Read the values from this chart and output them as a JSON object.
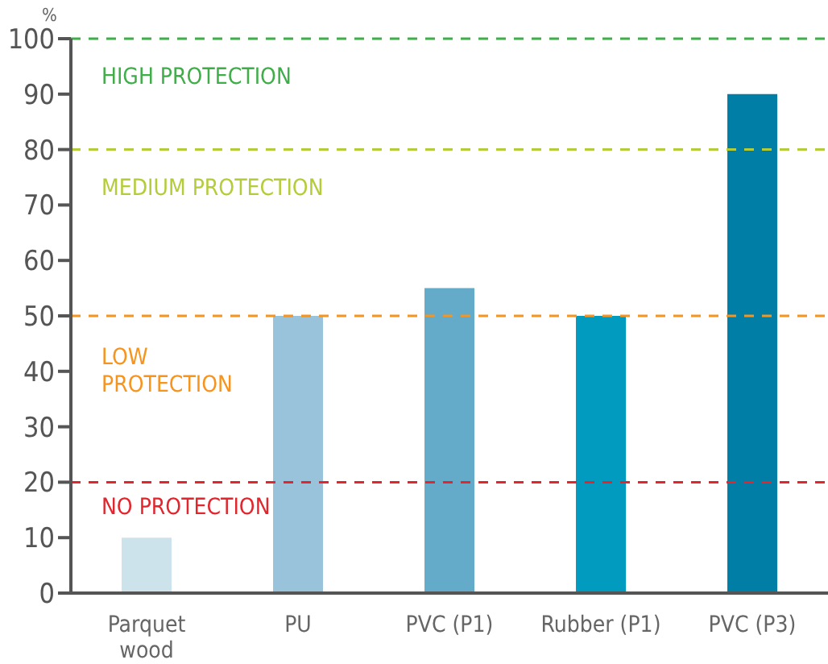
{
  "chart_data": {
    "type": "bar",
    "ylabel": "%",
    "categories": [
      "Parquet wood",
      "PU",
      "PVC (P1)",
      "Rubber (P1)",
      "PVC (P3)"
    ],
    "values": [
      10,
      50,
      55,
      50,
      90
    ],
    "colors": [
      "#cde3ec",
      "#98c3da",
      "#63abc9",
      "#009bbf",
      "#007ea6"
    ],
    "ylim": [
      0,
      100
    ],
    "yticks": [
      0,
      10,
      20,
      30,
      40,
      50,
      60,
      70,
      80,
      90,
      100
    ],
    "grid": false,
    "legend": false,
    "ref_lines": [
      {
        "axis": "y",
        "value": 100,
        "label": "HIGH PROTECTION",
        "color": "#3fae49",
        "line_style": "dashed"
      },
      {
        "axis": "y",
        "value": 80,
        "label": "MEDIUM PROTECTION",
        "color": "#b5cc3a",
        "line_style": "dashed"
      },
      {
        "axis": "y",
        "value": 50,
        "label": "LOW PROTECTION",
        "color": "#f7941d",
        "line_style": "dashed"
      },
      {
        "axis": "y",
        "value": 20,
        "label": "NO PROTECTION",
        "color": "#e1262d",
        "line_style": "dashed"
      }
    ]
  }
}
